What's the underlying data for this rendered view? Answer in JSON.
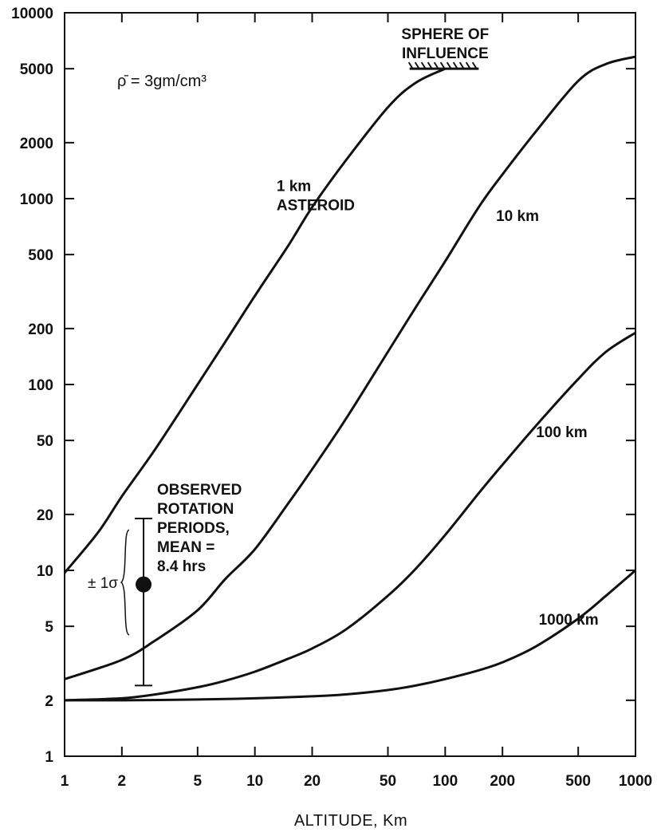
{
  "chart_data": {
    "type": "line",
    "title": "",
    "xlabel": "ALTITUDE, Km",
    "ylabel": "",
    "x_scale": "log",
    "y_scale": "log",
    "xlim": [
      1,
      1000
    ],
    "ylim": [
      1,
      10000
    ],
    "grid": false,
    "x_ticks": [
      1,
      2,
      5,
      10,
      20,
      50,
      100,
      200,
      500,
      1000
    ],
    "x_tick_labels": [
      "1",
      "2",
      "5",
      "10",
      "20",
      "50",
      "100",
      "200",
      "500",
      "1000"
    ],
    "y_ticks": [
      1,
      2,
      5,
      10,
      20,
      50,
      100,
      200,
      500,
      1000,
      2000,
      5000,
      10000
    ],
    "y_tick_labels": [
      "1",
      "2",
      "5",
      "10",
      "20",
      "50",
      "100",
      "200",
      "500",
      "1000",
      "2000",
      "5000",
      "10000"
    ],
    "series": [
      {
        "name": "1 km ASTEROID",
        "x": [
          1,
          1.5,
          2,
          3,
          5,
          7,
          10,
          15,
          20,
          30,
          50,
          70,
          100
        ],
        "y": [
          9.7,
          16,
          25,
          45,
          100,
          170,
          300,
          560,
          900,
          1600,
          3100,
          4200,
          5000
        ]
      },
      {
        "name": "10 km",
        "x": [
          1,
          2,
          3,
          5,
          7,
          10,
          15,
          20,
          30,
          50,
          70,
          100,
          150,
          200,
          300,
          500,
          700,
          1000
        ],
        "y": [
          2.6,
          3.3,
          4.2,
          6.1,
          9,
          13,
          23,
          35,
          65,
          150,
          260,
          460,
          900,
          1350,
          2300,
          4300,
          5300,
          5800
        ]
      },
      {
        "name": "100 km",
        "x": [
          1,
          2,
          3,
          5,
          7,
          10,
          15,
          20,
          30,
          50,
          70,
          100,
          150,
          200,
          300,
          500,
          700,
          1000
        ],
        "y": [
          2.0,
          2.05,
          2.15,
          2.35,
          2.55,
          2.85,
          3.35,
          3.8,
          4.8,
          7.3,
          10.2,
          15.5,
          26,
          37,
          60,
          107,
          150,
          190
        ]
      },
      {
        "name": "1000 km",
        "x": [
          1,
          2,
          5,
          10,
          20,
          30,
          50,
          70,
          100,
          150,
          200,
          300,
          500,
          700,
          1000
        ],
        "y": [
          2.0,
          2.0,
          2.02,
          2.05,
          2.1,
          2.15,
          2.27,
          2.4,
          2.6,
          2.9,
          3.2,
          3.9,
          5.5,
          7.3,
          10
        ]
      }
    ],
    "series_labels": [
      {
        "lines": [
          "1 km",
          "ASTEROID"
        ],
        "x": 13,
        "y": 1100
      },
      {
        "lines": [
          "10 km"
        ],
        "x": 185,
        "y": 760
      },
      {
        "lines": [
          "100 km"
        ],
        "x": 300,
        "y": 52
      },
      {
        "lines": [
          "1000 km"
        ],
        "x": 310,
        "y": 5.1
      }
    ],
    "density_annotation": "ρ̄ = 3gm/cm³",
    "sphere_of_influence": {
      "label_lines": [
        "SPHERE OF",
        "INFLUENCE"
      ],
      "x_range": [
        65,
        150
      ],
      "y": 5000
    },
    "observed_rotation": {
      "label_lines": [
        "OBSERVED",
        "ROTATION",
        "PERIODS,",
        "MEAN =",
        "8.4 hrs"
      ],
      "x": 2.6,
      "mean": 8.4,
      "low": 2.4,
      "high": 19,
      "sigma_label": "± 1σ",
      "sigma_low": 4.5,
      "sigma_high": 16.5
    },
    "colors": {
      "line": "#111111",
      "background": "#ffffff"
    }
  }
}
